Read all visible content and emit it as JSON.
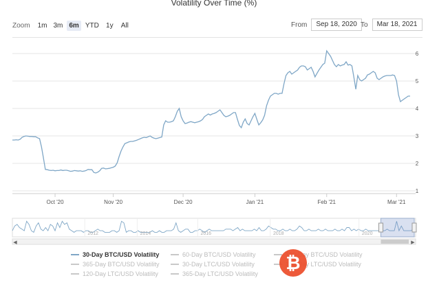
{
  "chart_data": {
    "type": "line",
    "title": "Volatility Over Time (%)",
    "y_axis": {
      "min": 0.9,
      "max": 6.4,
      "ticks": [
        1,
        2,
        3,
        4,
        5,
        6
      ],
      "position": "right"
    },
    "x_axis": {
      "labels": [
        "Oct '20",
        "Nov '20",
        "Dec '20",
        "Jan '21",
        "Feb '21",
        "Mar '21"
      ],
      "label_x_index": [
        22,
        52,
        88,
        125,
        162,
        198
      ]
    },
    "series": [
      {
        "name": "30-Day BTC/USD Volatility",
        "visible": true,
        "color": "#7ea6c6",
        "values": [
          2.85,
          2.85,
          2.86,
          2.85,
          2.88,
          2.95,
          2.98,
          3.0,
          2.99,
          2.98,
          2.98,
          2.97,
          2.97,
          2.93,
          2.9,
          2.6,
          2.2,
          1.78,
          1.77,
          1.75,
          1.74,
          1.75,
          1.73,
          1.74,
          1.74,
          1.76,
          1.74,
          1.75,
          1.75,
          1.73,
          1.71,
          1.72,
          1.74,
          1.73,
          1.72,
          1.73,
          1.71,
          1.72,
          1.74,
          1.78,
          1.77,
          1.77,
          1.67,
          1.65,
          1.68,
          1.73,
          1.82,
          1.83,
          1.8,
          1.81,
          1.82,
          1.84,
          1.86,
          1.9,
          2.02,
          2.25,
          2.45,
          2.6,
          2.72,
          2.75,
          2.78,
          2.8,
          2.8,
          2.82,
          2.84,
          2.87,
          2.9,
          2.93,
          2.95,
          2.94,
          2.97,
          3.0,
          2.95,
          2.92,
          2.9,
          2.92,
          2.94,
          2.96,
          3.4,
          3.55,
          3.5,
          3.5,
          3.52,
          3.55,
          3.7,
          3.9,
          4.0,
          3.7,
          3.55,
          3.45,
          3.47,
          3.5,
          3.52,
          3.5,
          3.48,
          3.5,
          3.52,
          3.55,
          3.6,
          3.7,
          3.75,
          3.8,
          3.76,
          3.8,
          3.82,
          3.85,
          3.9,
          3.95,
          3.85,
          3.75,
          3.7,
          3.72,
          3.75,
          3.8,
          3.85,
          3.85,
          3.6,
          3.38,
          3.3,
          3.5,
          3.62,
          3.45,
          3.4,
          3.55,
          3.7,
          3.82,
          3.6,
          3.4,
          3.48,
          3.58,
          3.75,
          4.1,
          4.3,
          4.45,
          4.5,
          4.55,
          4.55,
          4.52,
          4.55,
          4.55,
          4.9,
          5.2,
          5.3,
          5.35,
          5.25,
          5.3,
          5.35,
          5.4,
          5.5,
          5.55,
          5.55,
          5.52,
          5.4,
          5.45,
          5.5,
          5.35,
          5.15,
          5.28,
          5.4,
          5.5,
          5.6,
          5.65,
          6.1,
          6.0,
          5.9,
          5.75,
          5.6,
          5.52,
          5.6,
          5.55,
          5.58,
          5.6,
          5.7,
          5.58,
          5.6,
          5.55,
          5.15,
          4.7,
          5.2,
          5.05,
          5.0,
          5.05,
          5.1,
          5.22,
          5.25,
          5.3,
          5.35,
          5.3,
          5.1,
          5.05,
          5.1,
          5.15,
          5.18,
          5.2,
          5.2,
          5.2,
          5.22,
          5.2,
          5.0,
          4.5,
          4.25,
          4.3,
          4.35,
          4.4,
          4.45,
          4.45
        ]
      },
      {
        "name": "60-Day BTC/USD Volatility",
        "visible": false
      },
      {
        "name": "180-Day BTC/USD Volatility",
        "visible": false
      },
      {
        "name": "365-Day BTC/USD Volatility",
        "visible": false
      },
      {
        "name": "30-Day LTC/USD Volatility",
        "visible": false
      },
      {
        "name": "180-Day LTC/USD Volatility",
        "visible": false
      },
      {
        "name": "120-Day LTC/USD Volatility",
        "visible": false
      },
      {
        "name": "365-Day LTC/USD Volatility",
        "visible": false
      }
    ],
    "navigator": {
      "labels": [
        "2012",
        "2014",
        "2016",
        "2018",
        "2020"
      ],
      "values": [
        3,
        6,
        7,
        5,
        4,
        3,
        9,
        7,
        3,
        2,
        6,
        8,
        4,
        3,
        5,
        3,
        7,
        6,
        3,
        8,
        5,
        9,
        7,
        8,
        4,
        3,
        2,
        3,
        3,
        3,
        2,
        3,
        3,
        2,
        2,
        3,
        4,
        3,
        3,
        2,
        2,
        2,
        3,
        3,
        2,
        3,
        9,
        8,
        2,
        3,
        3,
        2,
        2,
        3,
        2,
        2,
        2,
        2,
        2,
        3,
        2,
        2,
        3,
        2,
        2,
        3,
        3,
        3,
        4,
        8,
        3,
        2,
        3,
        4,
        4,
        2,
        2,
        3,
        3,
        4,
        3,
        2,
        3,
        4,
        3,
        3,
        3,
        3,
        3,
        3,
        4,
        4,
        4,
        3,
        4,
        5,
        3,
        4,
        3,
        3,
        3,
        3,
        4,
        3,
        5,
        3,
        3,
        4,
        6,
        5,
        4,
        4,
        3,
        3,
        4,
        3,
        3,
        4,
        3,
        3,
        4,
        6,
        5,
        3,
        3,
        4,
        3,
        3,
        3,
        4,
        3,
        3,
        4,
        3,
        3,
        3,
        4,
        3,
        3,
        4,
        3,
        5,
        5,
        3,
        4,
        3,
        4,
        3,
        3,
        4,
        3,
        3,
        3,
        3,
        3,
        3,
        3,
        3,
        4,
        3,
        3,
        3,
        9,
        3,
        6,
        3,
        3,
        3,
        3,
        4,
        5
      ],
      "selection_start_fraction": 0.965
    }
  },
  "zoom": {
    "label": "Zoom",
    "buttons": [
      "1m",
      "3m",
      "6m",
      "YTD",
      "1y",
      "All"
    ],
    "active": "6m"
  },
  "range": {
    "from_label": "From",
    "from_value": "Sep 18, 2020",
    "to_label": "To",
    "to_value": "Mar 18, 2021"
  },
  "colors": {
    "accent": "#7ea6c6",
    "watermark": "#ec4d2a"
  },
  "watermark": {
    "text": "₿",
    "name": "bitcoin-logo"
  }
}
